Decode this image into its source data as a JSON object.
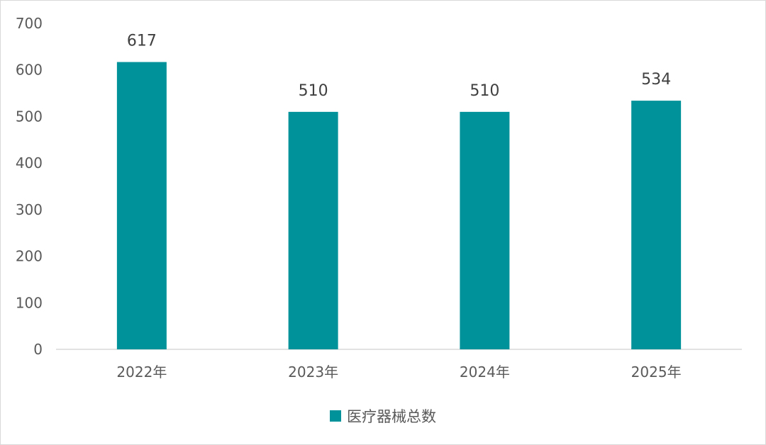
{
  "chart_data": {
    "type": "bar",
    "categories": [
      "2022年",
      "2023年",
      "2024年",
      "2025年"
    ],
    "series": [
      {
        "name": "医疗器械总数",
        "values": [
          617,
          510,
          510,
          534
        ]
      }
    ],
    "ylim": [
      0,
      700
    ],
    "yticks": [
      0,
      100,
      200,
      300,
      400,
      500,
      600,
      700
    ],
    "grid": false,
    "legend": "bottom",
    "colors": {
      "bar": "#00929B",
      "axis": "#d9d9d9",
      "text": "#595959",
      "label": "#404040"
    }
  }
}
